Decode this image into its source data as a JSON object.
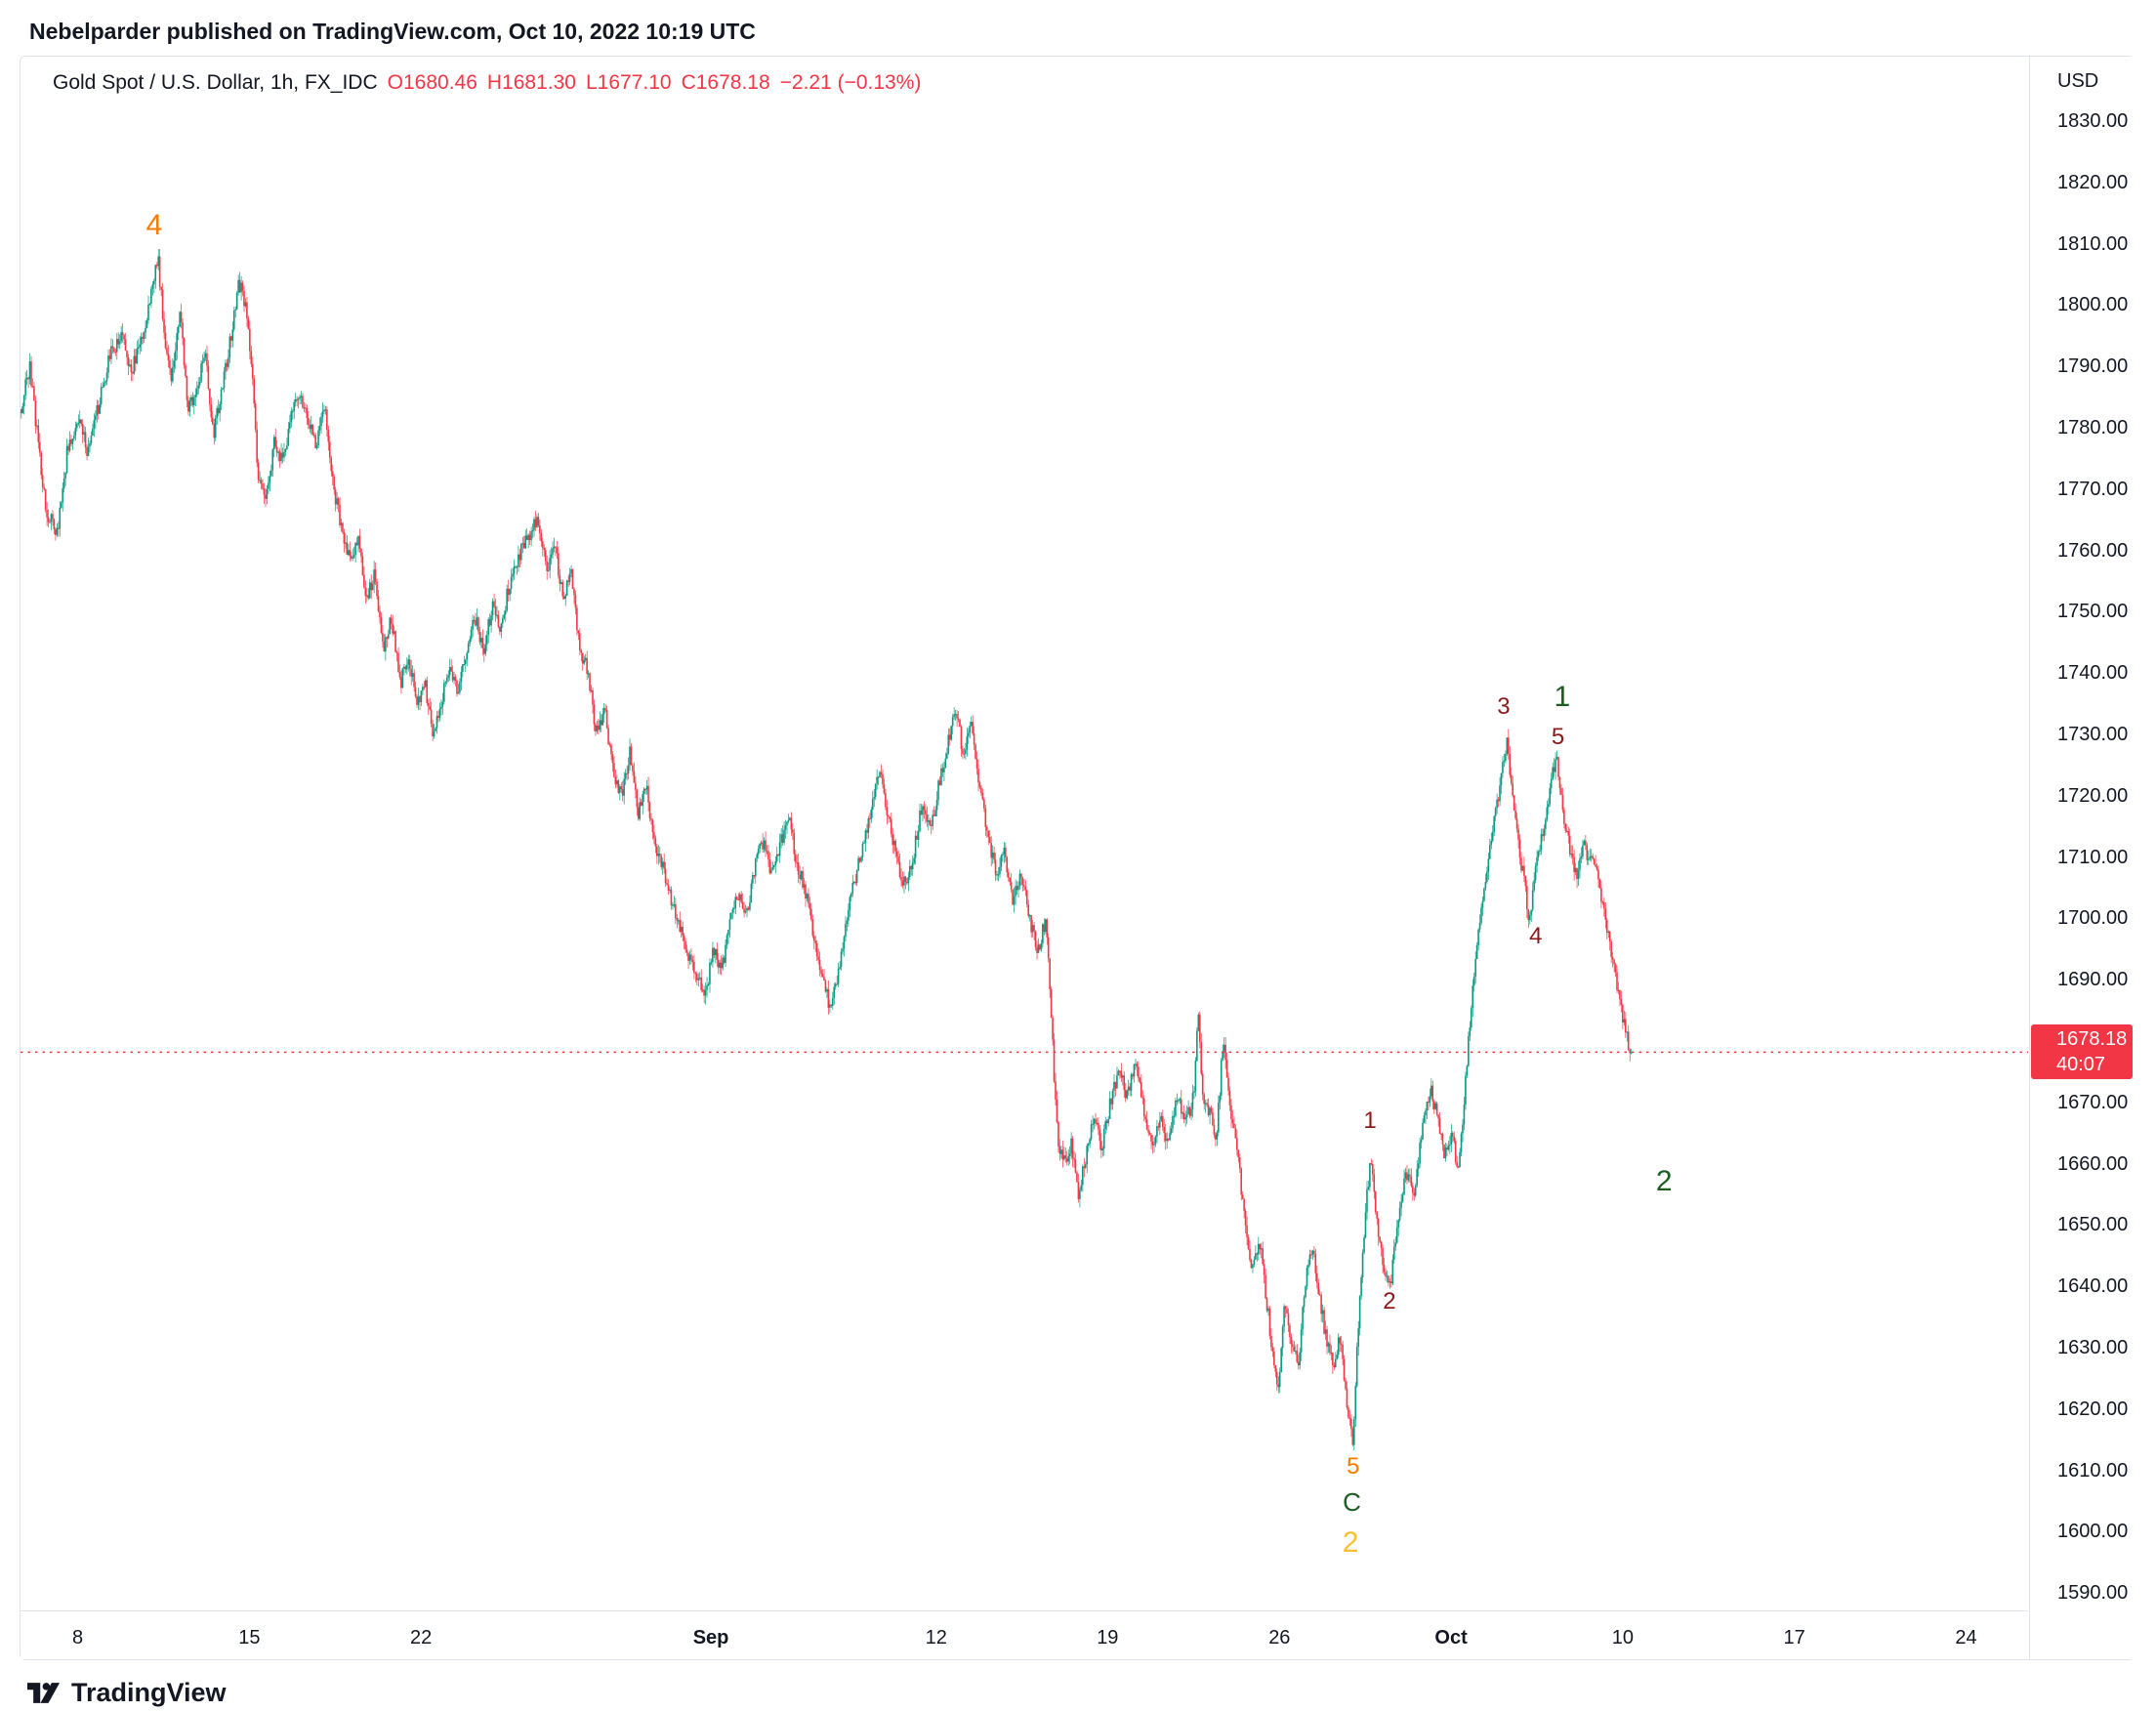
{
  "header": {
    "attribution": "Nebelparder published on TradingView.com, Oct 10, 2022 10:19 UTC"
  },
  "legend": {
    "title": "Gold Spot / U.S. Dollar, 1h, FX_IDC",
    "open": "O1680.46",
    "high": "H1681.30",
    "low": "L1677.10",
    "close": "C1678.18",
    "change": "−2.21 (−0.13%)"
  },
  "price_axis": {
    "currency": "USD",
    "current_price": "1678.18",
    "countdown": "40:07",
    "min": 1590,
    "max": 1830,
    "step": 10
  },
  "time_axis": {
    "labels": [
      "8",
      "15",
      "22",
      "Sep",
      "12",
      "19",
      "26",
      "Oct",
      "10",
      "17",
      "24"
    ],
    "fractions": [
      0.0285,
      0.114,
      0.1995,
      0.3439,
      0.4561,
      0.5415,
      0.6271,
      0.7126,
      0.7981,
      0.8836,
      0.9691
    ],
    "bold_labels": [
      "Sep",
      "Oct"
    ]
  },
  "footer": {
    "brand": "TradingView"
  },
  "colors": {
    "up": "#089981",
    "down": "#f23645",
    "accent_red": "#f23645",
    "text": "#131722",
    "axis_border": "#e0e3eb",
    "wave_orange": "#f57c00",
    "wave_maroon": "#8b1a1a",
    "wave_green": "#1b5e20",
    "wave_yellow": "#fbc02d"
  },
  "chart_data": {
    "type": "candlestick",
    "symbol": "Gold Spot / U.S. Dollar",
    "timeframe": "1h",
    "exchange": "FX_IDC",
    "ohlc": {
      "open": 1680.46,
      "high": 1681.3,
      "low": 1677.1,
      "close": 1678.18,
      "change": -2.21,
      "change_pct": -0.13
    },
    "current_price": 1678.18,
    "ylim": [
      1590,
      1830
    ],
    "y_tick_step": 10,
    "x_labels": [
      "8",
      "15",
      "22",
      "Sep",
      "12",
      "19",
      "26",
      "Oct",
      "10",
      "17",
      "24"
    ],
    "grid": false,
    "candle_count": 1128,
    "data_end_fraction": 0.8027,
    "noise": {
      "seed": 42,
      "body": 1.3,
      "wick": 1.5
    },
    "anchors": [
      [
        0,
        1783
      ],
      [
        0.0052,
        1790
      ],
      [
        0.0104,
        1778
      ],
      [
        0.0156,
        1766
      ],
      [
        0.0225,
        1763
      ],
      [
        0.0285,
        1776
      ],
      [
        0.0355,
        1781
      ],
      [
        0.0415,
        1776
      ],
      [
        0.0484,
        1784
      ],
      [
        0.0554,
        1792
      ],
      [
        0.0623,
        1795
      ],
      [
        0.0683,
        1789
      ],
      [
        0.0744,
        1794
      ],
      [
        0.0796,
        1800
      ],
      [
        0.0848,
        1808
      ],
      [
        0.0891,
        1795
      ],
      [
        0.0934,
        1788
      ],
      [
        0.0986,
        1799
      ],
      [
        0.1038,
        1783
      ],
      [
        0.109,
        1786
      ],
      [
        0.1142,
        1792
      ],
      [
        0.1194,
        1779
      ],
      [
        0.1246,
        1786
      ],
      [
        0.1298,
        1794
      ],
      [
        0.1349,
        1804
      ],
      [
        0.1393,
        1800
      ],
      [
        0.1436,
        1788
      ],
      [
        0.1471,
        1772
      ],
      [
        0.1522,
        1769
      ],
      [
        0.1574,
        1778
      ],
      [
        0.1626,
        1774
      ],
      [
        0.1678,
        1782
      ],
      [
        0.173,
        1786
      ],
      [
        0.1782,
        1781
      ],
      [
        0.1834,
        1777
      ],
      [
        0.1886,
        1784
      ],
      [
        0.1938,
        1770
      ],
      [
        0.199,
        1764
      ],
      [
        0.2042,
        1758
      ],
      [
        0.2093,
        1762
      ],
      [
        0.2145,
        1752
      ],
      [
        0.2197,
        1756
      ],
      [
        0.2249,
        1744
      ],
      [
        0.2301,
        1749
      ],
      [
        0.2353,
        1738
      ],
      [
        0.2405,
        1743
      ],
      [
        0.2457,
        1735
      ],
      [
        0.2509,
        1738
      ],
      [
        0.2561,
        1729
      ],
      [
        0.2612,
        1736
      ],
      [
        0.2664,
        1741
      ],
      [
        0.2716,
        1737
      ],
      [
        0.2768,
        1744
      ],
      [
        0.282,
        1749
      ],
      [
        0.2872,
        1743
      ],
      [
        0.2924,
        1751
      ],
      [
        0.2976,
        1747
      ],
      [
        0.3028,
        1754
      ],
      [
        0.3088,
        1759
      ],
      [
        0.3149,
        1762
      ],
      [
        0.3209,
        1765
      ],
      [
        0.3261,
        1757
      ],
      [
        0.3313,
        1761
      ],
      [
        0.3365,
        1752
      ],
      [
        0.3417,
        1756
      ],
      [
        0.3469,
        1744
      ],
      [
        0.3521,
        1740
      ],
      [
        0.3573,
        1730
      ],
      [
        0.3624,
        1734
      ],
      [
        0.3676,
        1724
      ],
      [
        0.3728,
        1720
      ],
      [
        0.378,
        1727
      ],
      [
        0.3832,
        1717
      ],
      [
        0.3884,
        1721
      ],
      [
        0.3936,
        1712
      ],
      [
        0.3988,
        1708
      ],
      [
        0.404,
        1703
      ],
      [
        0.4092,
        1699
      ],
      [
        0.4144,
        1694
      ],
      [
        0.4196,
        1691
      ],
      [
        0.4248,
        1687
      ],
      [
        0.4299,
        1695
      ],
      [
        0.4351,
        1692
      ],
      [
        0.4403,
        1699
      ],
      [
        0.4455,
        1704
      ],
      [
        0.4507,
        1701
      ],
      [
        0.4559,
        1709
      ],
      [
        0.4611,
        1713
      ],
      [
        0.4663,
        1707
      ],
      [
        0.4715,
        1712
      ],
      [
        0.4767,
        1716
      ],
      [
        0.4819,
        1709
      ],
      [
        0.4871,
        1704
      ],
      [
        0.4923,
        1697
      ],
      [
        0.4974,
        1691
      ],
      [
        0.5026,
        1685
      ],
      [
        0.5078,
        1692
      ],
      [
        0.513,
        1700
      ],
      [
        0.5182,
        1707
      ],
      [
        0.5234,
        1713
      ],
      [
        0.5286,
        1719
      ],
      [
        0.5338,
        1724
      ],
      [
        0.539,
        1716
      ],
      [
        0.5442,
        1709
      ],
      [
        0.5494,
        1705
      ],
      [
        0.5545,
        1711
      ],
      [
        0.5597,
        1719
      ],
      [
        0.5649,
        1714
      ],
      [
        0.5701,
        1722
      ],
      [
        0.5753,
        1728
      ],
      [
        0.5805,
        1734
      ],
      [
        0.5848,
        1727
      ],
      [
        0.59,
        1731
      ],
      [
        0.5952,
        1722
      ],
      [
        0.6004,
        1713
      ],
      [
        0.6055,
        1707
      ],
      [
        0.6107,
        1711
      ],
      [
        0.6159,
        1703
      ],
      [
        0.6211,
        1707
      ],
      [
        0.6263,
        1700
      ],
      [
        0.6315,
        1695
      ],
      [
        0.6367,
        1700
      ],
      [
        0.6401,
        1682
      ],
      [
        0.6436,
        1664
      ],
      [
        0.6479,
        1660
      ],
      [
        0.6522,
        1663
      ],
      [
        0.6565,
        1655
      ],
      [
        0.6609,
        1661
      ],
      [
        0.6661,
        1667
      ],
      [
        0.6713,
        1663
      ],
      [
        0.6765,
        1670
      ],
      [
        0.6817,
        1675
      ],
      [
        0.6869,
        1671
      ],
      [
        0.692,
        1676
      ],
      [
        0.6972,
        1669
      ],
      [
        0.7024,
        1663
      ],
      [
        0.7076,
        1668
      ],
      [
        0.7128,
        1663
      ],
      [
        0.718,
        1671
      ],
      [
        0.7232,
        1667
      ],
      [
        0.7284,
        1671
      ],
      [
        0.731,
        1686
      ],
      [
        0.7336,
        1671
      ],
      [
        0.7388,
        1668
      ],
      [
        0.7422,
        1664
      ],
      [
        0.7465,
        1680
      ],
      [
        0.7509,
        1669
      ],
      [
        0.7561,
        1660
      ],
      [
        0.7604,
        1650
      ],
      [
        0.7647,
        1643
      ],
      [
        0.769,
        1648
      ],
      [
        0.7734,
        1638
      ],
      [
        0.7777,
        1628
      ],
      [
        0.7811,
        1623
      ],
      [
        0.7846,
        1637
      ],
      [
        0.7889,
        1631
      ],
      [
        0.7932,
        1627
      ],
      [
        0.7976,
        1641
      ],
      [
        0.8019,
        1647
      ],
      [
        0.8062,
        1639
      ],
      [
        0.8105,
        1631
      ],
      [
        0.8149,
        1627
      ],
      [
        0.8192,
        1632
      ],
      [
        0.8235,
        1621
      ],
      [
        0.827,
        1615
      ],
      [
        0.8313,
        1638
      ],
      [
        0.8356,
        1654
      ],
      [
        0.8382,
        1661
      ],
      [
        0.8426,
        1649
      ],
      [
        0.8469,
        1643
      ],
      [
        0.8503,
        1640
      ],
      [
        0.8547,
        1651
      ],
      [
        0.8599,
        1659
      ],
      [
        0.8651,
        1655
      ],
      [
        0.8702,
        1666
      ],
      [
        0.8754,
        1673
      ],
      [
        0.8798,
        1667
      ],
      [
        0.8841,
        1661
      ],
      [
        0.8884,
        1665
      ],
      [
        0.8927,
        1659
      ],
      [
        0.897,
        1673
      ],
      [
        0.9014,
        1689
      ],
      [
        0.9057,
        1700
      ],
      [
        0.91,
        1708
      ],
      [
        0.9143,
        1715
      ],
      [
        0.9187,
        1722
      ],
      [
        0.923,
        1729
      ],
      [
        0.9264,
        1719
      ],
      [
        0.9299,
        1712
      ],
      [
        0.9334,
        1706
      ],
      [
        0.9368,
        1699
      ],
      [
        0.9412,
        1709
      ],
      [
        0.9455,
        1715
      ],
      [
        0.9498,
        1721
      ],
      [
        0.9533,
        1727
      ],
      [
        0.9576,
        1717
      ],
      [
        0.9619,
        1711
      ],
      [
        0.9663,
        1707
      ],
      [
        0.9706,
        1712
      ],
      [
        0.9749,
        1709
      ],
      [
        0.9792,
        1707
      ],
      [
        0.9836,
        1700
      ],
      [
        0.9879,
        1694
      ],
      [
        0.9922,
        1688
      ],
      [
        0.9965,
        1681
      ],
      [
        1,
        1678.18
      ]
    ],
    "wave_labels": [
      {
        "text": "4",
        "color": "#f57c00",
        "t": 0.083,
        "price": 1813.0,
        "size": 30
      },
      {
        "text": "3",
        "color": "#8b1a1a",
        "t": 0.9204,
        "price": 1734.5,
        "size": 24
      },
      {
        "text": "1",
        "color": "#1b5e20",
        "t": 0.9567,
        "price": 1736.0,
        "size": 30
      },
      {
        "text": "5",
        "color": "#8b1a1a",
        "t": 0.9541,
        "price": 1729.5,
        "size": 24
      },
      {
        "text": "4",
        "color": "#8b1a1a",
        "t": 0.9403,
        "price": 1697.0,
        "size": 24
      },
      {
        "text": "1",
        "color": "#8b1a1a",
        "t": 0.8374,
        "price": 1667.0,
        "size": 24
      },
      {
        "text": "2",
        "color": "#8b1a1a",
        "t": 0.8495,
        "price": 1637.5,
        "size": 24
      },
      {
        "text": "2",
        "color": "#1b5e20",
        "t": 1.0199,
        "price": 1657.0,
        "size": 30
      },
      {
        "text": "5",
        "color": "#f57c00",
        "t": 0.827,
        "price": 1610.5,
        "size": 24
      },
      {
        "text": "C",
        "color": "#1b5e20",
        "t": 0.8262,
        "price": 1604.8,
        "size": 26
      },
      {
        "text": "2",
        "color": "#fbc02d",
        "t": 0.8253,
        "price": 1598.2,
        "size": 30
      }
    ]
  }
}
